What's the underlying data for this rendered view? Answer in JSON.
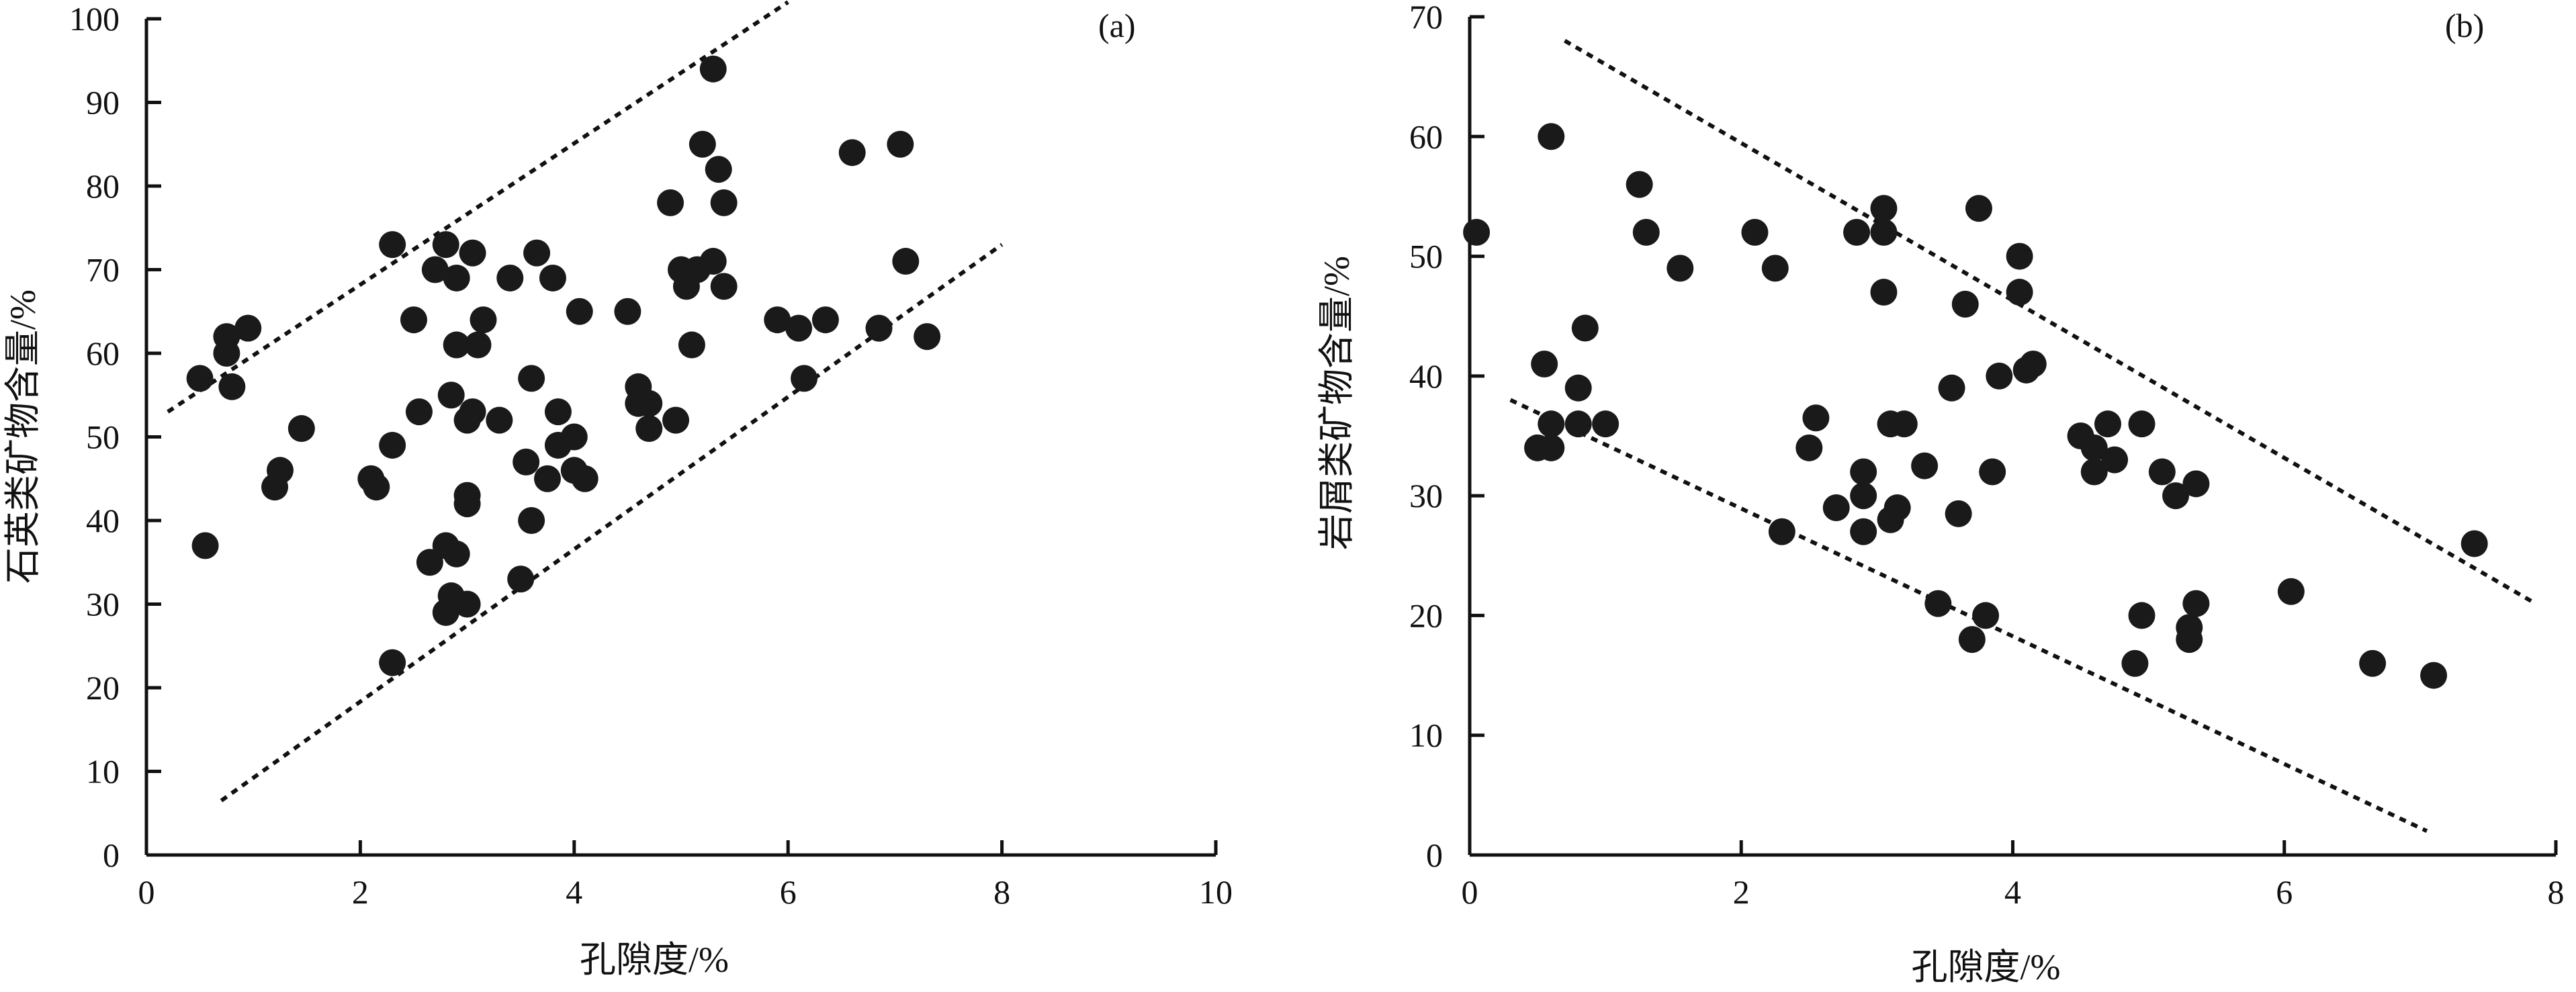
{
  "chart_data": [
    {
      "type": "scatter",
      "panel_label": "(a)",
      "xlabel": "孔隙度/%",
      "ylabel": "石英类矿物含量/%",
      "xlim": [
        0,
        10
      ],
      "ylim": [
        0,
        100
      ],
      "xticks": [
        "0",
        "2",
        "4",
        "6",
        "8",
        "10"
      ],
      "yticks": [
        "0",
        "10",
        "20",
        "30",
        "40",
        "50",
        "60",
        "70",
        "80",
        "90",
        "100"
      ],
      "grid": false,
      "legend": "none",
      "marker_color": "#1a1a1a",
      "points": [
        {
          "x": 0.5,
          "y": 57
        },
        {
          "x": 0.55,
          "y": 37
        },
        {
          "x": 0.75,
          "y": 62
        },
        {
          "x": 0.75,
          "y": 60
        },
        {
          "x": 0.8,
          "y": 56
        },
        {
          "x": 0.95,
          "y": 63
        },
        {
          "x": 1.2,
          "y": 44
        },
        {
          "x": 1.25,
          "y": 46
        },
        {
          "x": 1.45,
          "y": 51
        },
        {
          "x": 2.1,
          "y": 45
        },
        {
          "x": 2.15,
          "y": 44
        },
        {
          "x": 2.3,
          "y": 73
        },
        {
          "x": 2.3,
          "y": 49
        },
        {
          "x": 2.3,
          "y": 23
        },
        {
          "x": 2.5,
          "y": 64
        },
        {
          "x": 2.55,
          "y": 53
        },
        {
          "x": 2.65,
          "y": 35
        },
        {
          "x": 2.7,
          "y": 70
        },
        {
          "x": 2.8,
          "y": 73
        },
        {
          "x": 2.8,
          "y": 37
        },
        {
          "x": 2.8,
          "y": 29
        },
        {
          "x": 2.85,
          "y": 55
        },
        {
          "x": 2.85,
          "y": 31
        },
        {
          "x": 2.9,
          "y": 69
        },
        {
          "x": 2.9,
          "y": 61
        },
        {
          "x": 2.9,
          "y": 36
        },
        {
          "x": 3.0,
          "y": 30
        },
        {
          "x": 3.0,
          "y": 42
        },
        {
          "x": 3.0,
          "y": 43
        },
        {
          "x": 3.0,
          "y": 52
        },
        {
          "x": 3.05,
          "y": 53
        },
        {
          "x": 3.05,
          "y": 72
        },
        {
          "x": 3.1,
          "y": 61
        },
        {
          "x": 3.15,
          "y": 64
        },
        {
          "x": 3.3,
          "y": 52
        },
        {
          "x": 3.4,
          "y": 69
        },
        {
          "x": 3.5,
          "y": 33
        },
        {
          "x": 3.55,
          "y": 47
        },
        {
          "x": 3.6,
          "y": 57
        },
        {
          "x": 3.6,
          "y": 40
        },
        {
          "x": 3.65,
          "y": 72
        },
        {
          "x": 3.75,
          "y": 45
        },
        {
          "x": 3.8,
          "y": 69
        },
        {
          "x": 3.85,
          "y": 49
        },
        {
          "x": 3.85,
          "y": 53
        },
        {
          "x": 4.0,
          "y": 50
        },
        {
          "x": 4.0,
          "y": 46
        },
        {
          "x": 4.05,
          "y": 65
        },
        {
          "x": 4.1,
          "y": 45
        },
        {
          "x": 4.5,
          "y": 65
        },
        {
          "x": 4.6,
          "y": 56
        },
        {
          "x": 4.6,
          "y": 54
        },
        {
          "x": 4.7,
          "y": 51
        },
        {
          "x": 4.7,
          "y": 54
        },
        {
          "x": 4.9,
          "y": 78
        },
        {
          "x": 4.95,
          "y": 52
        },
        {
          "x": 5.0,
          "y": 70
        },
        {
          "x": 5.05,
          "y": 68
        },
        {
          "x": 5.1,
          "y": 61
        },
        {
          "x": 5.15,
          "y": 70
        },
        {
          "x": 5.2,
          "y": 85
        },
        {
          "x": 5.3,
          "y": 94
        },
        {
          "x": 5.3,
          "y": 71
        },
        {
          "x": 5.35,
          "y": 82
        },
        {
          "x": 5.4,
          "y": 78
        },
        {
          "x": 5.4,
          "y": 68
        },
        {
          "x": 5.9,
          "y": 64
        },
        {
          "x": 6.1,
          "y": 63
        },
        {
          "x": 6.15,
          "y": 57
        },
        {
          "x": 6.35,
          "y": 64
        },
        {
          "x": 6.6,
          "y": 84
        },
        {
          "x": 6.85,
          "y": 63
        },
        {
          "x": 7.05,
          "y": 85
        },
        {
          "x": 7.1,
          "y": 71
        },
        {
          "x": 7.3,
          "y": 62
        }
      ],
      "trend_lines": [
        {
          "style": "dotted",
          "from": [
            0.2,
            53
          ],
          "to": [
            6.0,
            102
          ]
        },
        {
          "style": "dotted",
          "from": [
            0.7,
            6.5
          ],
          "to": [
            8.0,
            73
          ]
        }
      ]
    },
    {
      "type": "scatter",
      "panel_label": "(b)",
      "xlabel": "孔隙度/%",
      "ylabel": "岩屑类矿物含量/%",
      "xlim": [
        0,
        8
      ],
      "ylim": [
        0,
        70
      ],
      "xticks": [
        "0",
        "2",
        "4",
        "6",
        "8"
      ],
      "yticks": [
        "0",
        "10",
        "20",
        "30",
        "40",
        "50",
        "60",
        "70"
      ],
      "grid": false,
      "legend": "none",
      "marker_color": "#1a1a1a",
      "points": [
        {
          "x": 0.05,
          "y": 52
        },
        {
          "x": 0.5,
          "y": 34
        },
        {
          "x": 0.55,
          "y": 41
        },
        {
          "x": 0.6,
          "y": 36
        },
        {
          "x": 0.6,
          "y": 34
        },
        {
          "x": 0.6,
          "y": 60
        },
        {
          "x": 0.8,
          "y": 39
        },
        {
          "x": 0.8,
          "y": 36
        },
        {
          "x": 0.85,
          "y": 44
        },
        {
          "x": 1.0,
          "y": 36
        },
        {
          "x": 1.25,
          "y": 56
        },
        {
          "x": 1.3,
          "y": 52
        },
        {
          "x": 1.55,
          "y": 49
        },
        {
          "x": 2.1,
          "y": 52
        },
        {
          "x": 2.25,
          "y": 49
        },
        {
          "x": 2.3,
          "y": 27
        },
        {
          "x": 2.5,
          "y": 34
        },
        {
          "x": 2.55,
          "y": 36.5
        },
        {
          "x": 2.7,
          "y": 29
        },
        {
          "x": 2.85,
          "y": 52
        },
        {
          "x": 2.9,
          "y": 30
        },
        {
          "x": 2.9,
          "y": 32
        },
        {
          "x": 2.9,
          "y": 27
        },
        {
          "x": 3.05,
          "y": 52
        },
        {
          "x": 3.05,
          "y": 47
        },
        {
          "x": 3.05,
          "y": 54
        },
        {
          "x": 3.1,
          "y": 36
        },
        {
          "x": 3.1,
          "y": 28
        },
        {
          "x": 3.15,
          "y": 29
        },
        {
          "x": 3.2,
          "y": 36
        },
        {
          "x": 3.35,
          "y": 32.5
        },
        {
          "x": 3.45,
          "y": 21
        },
        {
          "x": 3.55,
          "y": 39
        },
        {
          "x": 3.6,
          "y": 28.5
        },
        {
          "x": 3.65,
          "y": 46
        },
        {
          "x": 3.7,
          "y": 18
        },
        {
          "x": 3.75,
          "y": 54
        },
        {
          "x": 3.8,
          "y": 20
        },
        {
          "x": 3.85,
          "y": 32
        },
        {
          "x": 3.9,
          "y": 40
        },
        {
          "x": 4.05,
          "y": 50
        },
        {
          "x": 4.05,
          "y": 47
        },
        {
          "x": 4.1,
          "y": 40.5
        },
        {
          "x": 4.15,
          "y": 41
        },
        {
          "x": 4.5,
          "y": 35
        },
        {
          "x": 4.6,
          "y": 34
        },
        {
          "x": 4.6,
          "y": 32
        },
        {
          "x": 4.7,
          "y": 36
        },
        {
          "x": 4.75,
          "y": 33
        },
        {
          "x": 4.9,
          "y": 16
        },
        {
          "x": 4.95,
          "y": 20
        },
        {
          "x": 4.95,
          "y": 36
        },
        {
          "x": 5.1,
          "y": 32
        },
        {
          "x": 5.2,
          "y": 30
        },
        {
          "x": 5.3,
          "y": 18
        },
        {
          "x": 5.3,
          "y": 19
        },
        {
          "x": 5.35,
          "y": 21
        },
        {
          "x": 5.35,
          "y": 31
        },
        {
          "x": 6.05,
          "y": 22
        },
        {
          "x": 6.65,
          "y": 16
        },
        {
          "x": 7.1,
          "y": 15
        },
        {
          "x": 7.4,
          "y": 26
        }
      ],
      "trend_lines": [
        {
          "style": "dotted",
          "from": [
            0.7,
            68
          ],
          "to": [
            7.85,
            21
          ]
        },
        {
          "style": "dotted",
          "from": [
            0.3,
            38
          ],
          "to": [
            7.05,
            2
          ]
        }
      ]
    }
  ]
}
